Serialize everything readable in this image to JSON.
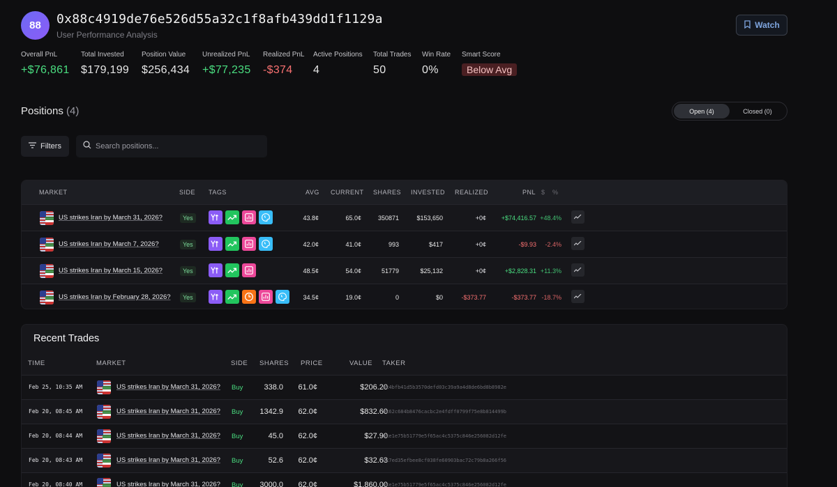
{
  "header": {
    "avatar_text": "88",
    "address": "0x88c4919de76e526d55a32c1f8afb439dd1f1129a",
    "subtitle": "User Performance Analysis",
    "watch_label": "Watch"
  },
  "stats": [
    {
      "label": "Overall PnL",
      "value": "+$76,861",
      "tone": "green"
    },
    {
      "label": "Total Invested",
      "value": "$179,199",
      "tone": "neutral"
    },
    {
      "label": "Position Value",
      "value": "$256,434",
      "tone": "neutral"
    },
    {
      "label": "Unrealized PnL",
      "value": "+$77,235",
      "tone": "green"
    },
    {
      "label": "Realized PnL",
      "value": "-$374",
      "tone": "red"
    },
    {
      "label": "Active Positions",
      "value": "4",
      "tone": "neutral"
    },
    {
      "label": "Total Trades",
      "value": "50",
      "tone": "neutral"
    },
    {
      "label": "Win Rate",
      "value": "0%",
      "tone": "neutral"
    },
    {
      "label": "Smart Score",
      "value": "Below Avg",
      "tone": "badge"
    }
  ],
  "positions": {
    "title": "Positions",
    "count": "(4)",
    "tab_open": "Open (4)",
    "tab_closed": "Closed (0)",
    "filters_label": "Filters",
    "search_placeholder": "Search positions...",
    "columns": {
      "market": "MARKET",
      "side": "SIDE",
      "tags": "TAGS",
      "avg": "AVG",
      "current": "CURRENT",
      "shares": "SHARES",
      "invested": "INVESTED",
      "realized": "REALIZED",
      "pnl": "PNL",
      "pnl_dollar": "$",
      "pnl_pct": "%"
    },
    "rows": [
      {
        "market": "US strikes Iran by March 31, 2026?",
        "side": "Yes",
        "tags": [
          "fork",
          "trend",
          "chart",
          "brain"
        ],
        "avg": "43.8¢",
        "current": "65.0¢",
        "shares": "350871",
        "invested": "$153,650",
        "realized": "+0¢",
        "realized_tone": "neutral",
        "pnl": "+$74,416.57",
        "pnl_pct": "+48.4%",
        "pnl_tone": "green"
      },
      {
        "market": "US strikes Iran by March 7, 2026?",
        "side": "Yes",
        "tags": [
          "fork",
          "trend",
          "chart",
          "brain"
        ],
        "avg": "42.0¢",
        "current": "41.0¢",
        "shares": "993",
        "invested": "$417",
        "realized": "+0¢",
        "realized_tone": "neutral",
        "pnl": "-$9.93",
        "pnl_pct": "-2.4%",
        "pnl_tone": "red"
      },
      {
        "market": "US strikes Iran by March 15, 2026?",
        "side": "Yes",
        "tags": [
          "fork",
          "trend",
          "chart"
        ],
        "avg": "48.5¢",
        "current": "54.0¢",
        "shares": "51779",
        "invested": "$25,132",
        "realized": "+0¢",
        "realized_tone": "neutral",
        "pnl": "+$2,828.31",
        "pnl_pct": "+11.3%",
        "pnl_tone": "green"
      },
      {
        "market": "US strikes Iran by February 28, 2026?",
        "side": "Yes",
        "tags": [
          "fork",
          "trend",
          "clock",
          "chart",
          "brain"
        ],
        "avg": "34.5¢",
        "current": "19.0¢",
        "shares": "0",
        "invested": "$0",
        "realized": "-$373.77",
        "realized_tone": "red",
        "pnl": "-$373.77",
        "pnl_pct": "-18.7%",
        "pnl_tone": "red"
      }
    ]
  },
  "trades": {
    "title": "Recent Trades",
    "columns": {
      "time": "TIME",
      "market": "MARKET",
      "side": "SIDE",
      "shares": "SHARES",
      "price": "PRICE",
      "value": "VALUE",
      "taker": "TAKER"
    },
    "rows": [
      {
        "time": "Feb 25, 10:35 AM",
        "market": "US strikes Iran by March 31, 2026?",
        "side": "Buy",
        "shares": "338.0",
        "price": "61.0¢",
        "value": "$206.20",
        "taker": "0x4bfb41d5b3570defd03c39a9a4d8de6bd8b8982e"
      },
      {
        "time": "Feb 20, 08:45 AM",
        "market": "US strikes Iran by March 31, 2026?",
        "side": "Buy",
        "shares": "1342.9",
        "price": "62.0¢",
        "value": "$832.60",
        "taker": "0x62c684b8476cacbc2e4fdff0799f75e8b814499b"
      },
      {
        "time": "Feb 20, 08:44 AM",
        "market": "US strikes Iran by March 31, 2026?",
        "side": "Buy",
        "shares": "45.0",
        "price": "62.0¢",
        "value": "$27.90",
        "taker": "0xe1e75b51779e5f65ac4c5375c846e256082d12fe"
      },
      {
        "time": "Feb 20, 08:43 AM",
        "market": "US strikes Iran by March 31, 2026?",
        "side": "Buy",
        "shares": "52.6",
        "price": "62.0¢",
        "value": "$32.63",
        "taker": "0x7ed35efbee8cf038fe60903bac72c79b8a266f56"
      },
      {
        "time": "Feb 20, 08:40 AM",
        "market": "US strikes Iran by March 31, 2026?",
        "side": "Buy",
        "shares": "3000.0",
        "price": "62.0¢",
        "value": "$1,860.00",
        "taker": "0xe1e75b51779e5f65ac4c5375c846e256082d12fe"
      }
    ]
  },
  "colors": {
    "green": "#4ade80",
    "red": "#f87171",
    "accent": "#7fa6e0"
  }
}
